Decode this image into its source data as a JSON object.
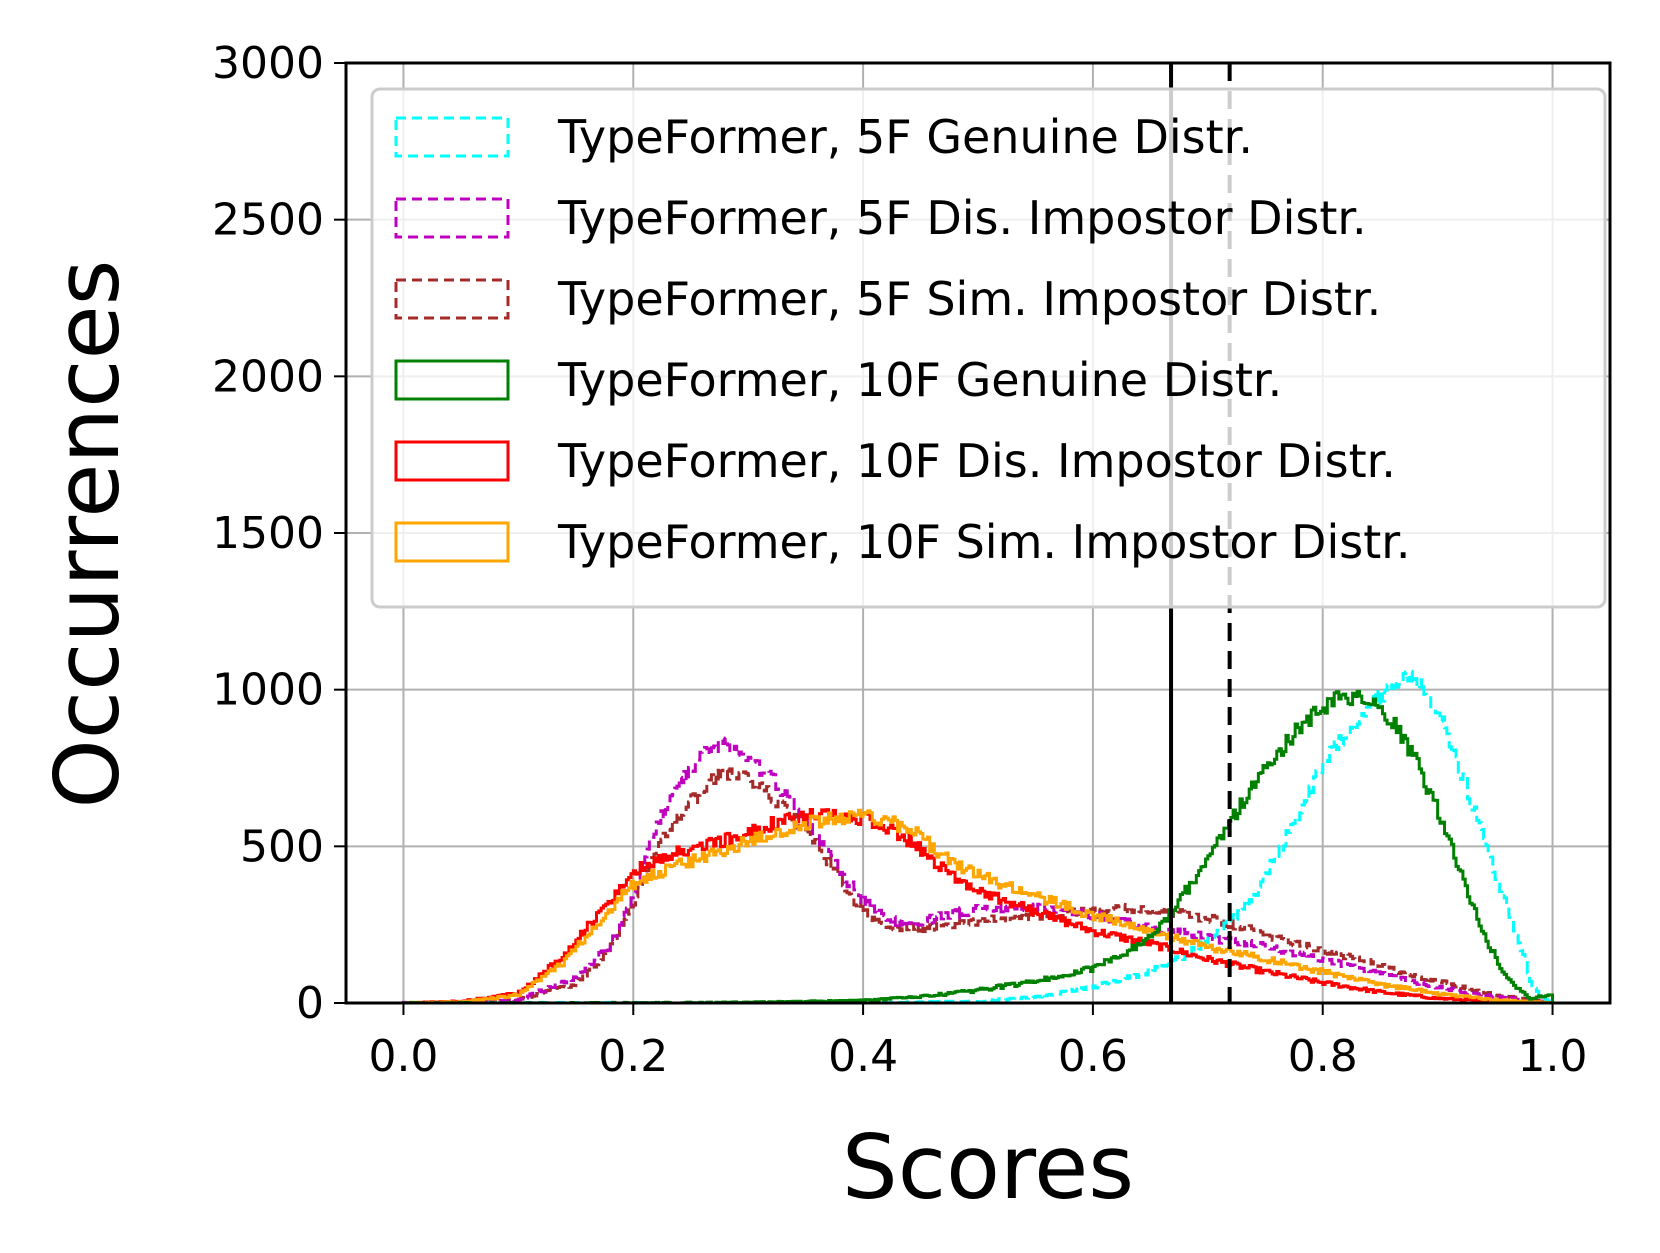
{
  "chart_data": {
    "type": "line",
    "title": "",
    "xlabel": "Scores",
    "ylabel": "Occurrences",
    "xlim": [
      -0.05,
      1.05
    ],
    "ylim": [
      0,
      3000
    ],
    "grid": true,
    "legend_position": "top-right",
    "xticks": [
      {
        "value": 0.0,
        "label": "0.0"
      },
      {
        "value": 0.2,
        "label": "0.2"
      },
      {
        "value": 0.4,
        "label": "0.4"
      },
      {
        "value": 0.6,
        "label": "0.6"
      },
      {
        "value": 0.8,
        "label": "0.8"
      },
      {
        "value": 1.0,
        "label": "1.0"
      }
    ],
    "yticks": [
      {
        "value": 0,
        "label": "0"
      },
      {
        "value": 500,
        "label": "500"
      },
      {
        "value": 1000,
        "label": "1000"
      },
      {
        "value": 1500,
        "label": "1500"
      },
      {
        "value": 2000,
        "label": "2000"
      },
      {
        "value": 2500,
        "label": "2500"
      },
      {
        "value": 3000,
        "label": "3000"
      }
    ],
    "vertical_lines": [
      {
        "x": 0.668,
        "style": "solid",
        "color": "#000000"
      },
      {
        "x": 0.719,
        "style": "dashed",
        "color": "#000000"
      }
    ],
    "series": [
      {
        "name": "TypeFormer, 5F Genuine Distr.",
        "color": "#00ffff",
        "style": "dashed",
        "points": [
          [
            0.0,
            0
          ],
          [
            0.4,
            0
          ],
          [
            0.5,
            5
          ],
          [
            0.55,
            20
          ],
          [
            0.6,
            50
          ],
          [
            0.65,
            100
          ],
          [
            0.68,
            150
          ],
          [
            0.7,
            200
          ],
          [
            0.72,
            260
          ],
          [
            0.74,
            340
          ],
          [
            0.76,
            470
          ],
          [
            0.78,
            610
          ],
          [
            0.8,
            760
          ],
          [
            0.82,
            860
          ],
          [
            0.84,
            950
          ],
          [
            0.86,
            1010
          ],
          [
            0.875,
            1050
          ],
          [
            0.89,
            1000
          ],
          [
            0.91,
            850
          ],
          [
            0.93,
            640
          ],
          [
            0.95,
            420
          ],
          [
            0.97,
            210
          ],
          [
            0.98,
            80
          ],
          [
            0.99,
            20
          ],
          [
            1.0,
            0
          ]
        ]
      },
      {
        "name": "TypeFormer, 5F Dis. Impostor Distr.",
        "color": "#bf00bf",
        "style": "dashed",
        "points": [
          [
            0.0,
            0
          ],
          [
            0.05,
            0
          ],
          [
            0.1,
            10
          ],
          [
            0.15,
            80
          ],
          [
            0.18,
            180
          ],
          [
            0.2,
            350
          ],
          [
            0.22,
            560
          ],
          [
            0.24,
            700
          ],
          [
            0.26,
            790
          ],
          [
            0.28,
            830
          ],
          [
            0.3,
            780
          ],
          [
            0.32,
            720
          ],
          [
            0.34,
            640
          ],
          [
            0.36,
            530
          ],
          [
            0.38,
            420
          ],
          [
            0.4,
            330
          ],
          [
            0.42,
            270
          ],
          [
            0.44,
            250
          ],
          [
            0.46,
            270
          ],
          [
            0.5,
            300
          ],
          [
            0.55,
            310
          ],
          [
            0.6,
            280
          ],
          [
            0.65,
            240
          ],
          [
            0.7,
            210
          ],
          [
            0.75,
            180
          ],
          [
            0.8,
            140
          ],
          [
            0.85,
            95
          ],
          [
            0.9,
            50
          ],
          [
            0.95,
            20
          ],
          [
            1.0,
            0
          ]
        ]
      },
      {
        "name": "TypeFormer, 5F Sim. Impostor Distr.",
        "color": "#a52a2a",
        "style": "dashed",
        "points": [
          [
            0.0,
            0
          ],
          [
            0.05,
            0
          ],
          [
            0.1,
            10
          ],
          [
            0.15,
            60
          ],
          [
            0.18,
            170
          ],
          [
            0.2,
            320
          ],
          [
            0.22,
            480
          ],
          [
            0.24,
            600
          ],
          [
            0.26,
            680
          ],
          [
            0.28,
            740
          ],
          [
            0.3,
            720
          ],
          [
            0.32,
            660
          ],
          [
            0.34,
            590
          ],
          [
            0.36,
            500
          ],
          [
            0.38,
            400
          ],
          [
            0.4,
            290
          ],
          [
            0.42,
            240
          ],
          [
            0.45,
            240
          ],
          [
            0.5,
            260
          ],
          [
            0.55,
            280
          ],
          [
            0.6,
            300
          ],
          [
            0.65,
            300
          ],
          [
            0.7,
            270
          ],
          [
            0.75,
            220
          ],
          [
            0.8,
            170
          ],
          [
            0.85,
            120
          ],
          [
            0.9,
            70
          ],
          [
            0.95,
            25
          ],
          [
            1.0,
            0
          ]
        ]
      },
      {
        "name": "TypeFormer, 10F Genuine Distr.",
        "color": "#008000",
        "style": "solid",
        "points": [
          [
            0.0,
            0
          ],
          [
            0.2,
            0
          ],
          [
            0.3,
            2
          ],
          [
            0.4,
            8
          ],
          [
            0.45,
            20
          ],
          [
            0.5,
            40
          ],
          [
            0.55,
            70
          ],
          [
            0.6,
            110
          ],
          [
            0.63,
            160
          ],
          [
            0.66,
            250
          ],
          [
            0.68,
            350
          ],
          [
            0.7,
            460
          ],
          [
            0.72,
            580
          ],
          [
            0.74,
            700
          ],
          [
            0.76,
            790
          ],
          [
            0.78,
            880
          ],
          [
            0.8,
            940
          ],
          [
            0.82,
            980
          ],
          [
            0.84,
            960
          ],
          [
            0.86,
            900
          ],
          [
            0.88,
            780
          ],
          [
            0.9,
            620
          ],
          [
            0.92,
            420
          ],
          [
            0.94,
            220
          ],
          [
            0.96,
            80
          ],
          [
            0.98,
            15
          ],
          [
            1.0,
            30
          ]
        ]
      },
      {
        "name": "TypeFormer, 10F Dis. Impostor Distr.",
        "color": "#ff0000",
        "style": "solid",
        "points": [
          [
            0.0,
            0
          ],
          [
            0.05,
            5
          ],
          [
            0.1,
            30
          ],
          [
            0.14,
            150
          ],
          [
            0.18,
            330
          ],
          [
            0.2,
            420
          ],
          [
            0.24,
            480
          ],
          [
            0.28,
            520
          ],
          [
            0.32,
            570
          ],
          [
            0.36,
            600
          ],
          [
            0.4,
            590
          ],
          [
            0.44,
            520
          ],
          [
            0.48,
            400
          ],
          [
            0.52,
            330
          ],
          [
            0.56,
            280
          ],
          [
            0.6,
            230
          ],
          [
            0.65,
            190
          ],
          [
            0.7,
            140
          ],
          [
            0.75,
            100
          ],
          [
            0.8,
            65
          ],
          [
            0.85,
            35
          ],
          [
            0.9,
            15
          ],
          [
            0.95,
            5
          ],
          [
            1.0,
            0
          ]
        ]
      },
      {
        "name": "TypeFormer, 10F Sim. Impostor Distr.",
        "color": "#ffa500",
        "style": "solid",
        "points": [
          [
            0.0,
            0
          ],
          [
            0.05,
            3
          ],
          [
            0.1,
            25
          ],
          [
            0.14,
            130
          ],
          [
            0.18,
            300
          ],
          [
            0.2,
            380
          ],
          [
            0.24,
            440
          ],
          [
            0.28,
            490
          ],
          [
            0.32,
            540
          ],
          [
            0.36,
            580
          ],
          [
            0.4,
            600
          ],
          [
            0.44,
            560
          ],
          [
            0.48,
            440
          ],
          [
            0.52,
            380
          ],
          [
            0.56,
            330
          ],
          [
            0.6,
            280
          ],
          [
            0.65,
            230
          ],
          [
            0.7,
            180
          ],
          [
            0.75,
            140
          ],
          [
            0.8,
            100
          ],
          [
            0.85,
            60
          ],
          [
            0.9,
            30
          ],
          [
            0.95,
            10
          ],
          [
            1.0,
            0
          ]
        ]
      }
    ]
  }
}
